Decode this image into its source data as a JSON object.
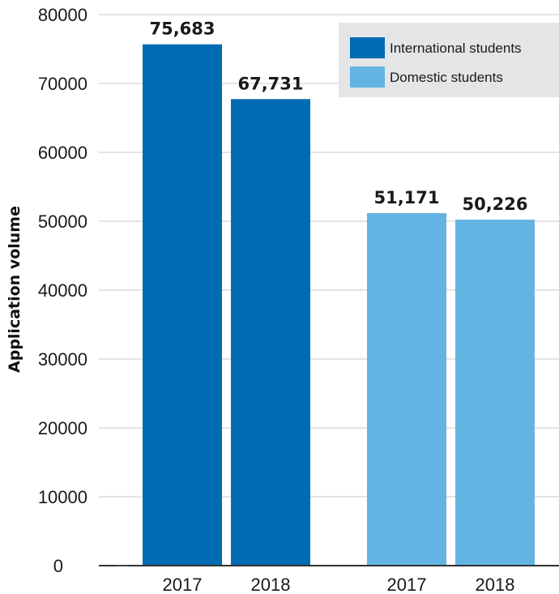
{
  "chart_data": {
    "type": "bar",
    "ylabel": "Application volume",
    "ylim": [
      0,
      80000
    ],
    "yticks": [
      0,
      10000,
      20000,
      30000,
      40000,
      50000,
      60000,
      70000,
      80000
    ],
    "grid": true,
    "legend_position": "top-right",
    "series": [
      {
        "name": "International students",
        "color": "#006bb3",
        "categories": [
          "2017",
          "2018"
        ],
        "values": [
          75683,
          67731
        ],
        "value_labels": [
          "75,683",
          "67,731"
        ]
      },
      {
        "name": "Domestic students",
        "color": "#63b3e3",
        "categories": [
          "2017",
          "2018"
        ],
        "values": [
          51171,
          50226
        ],
        "value_labels": [
          "51,171",
          "50,226"
        ]
      }
    ]
  }
}
